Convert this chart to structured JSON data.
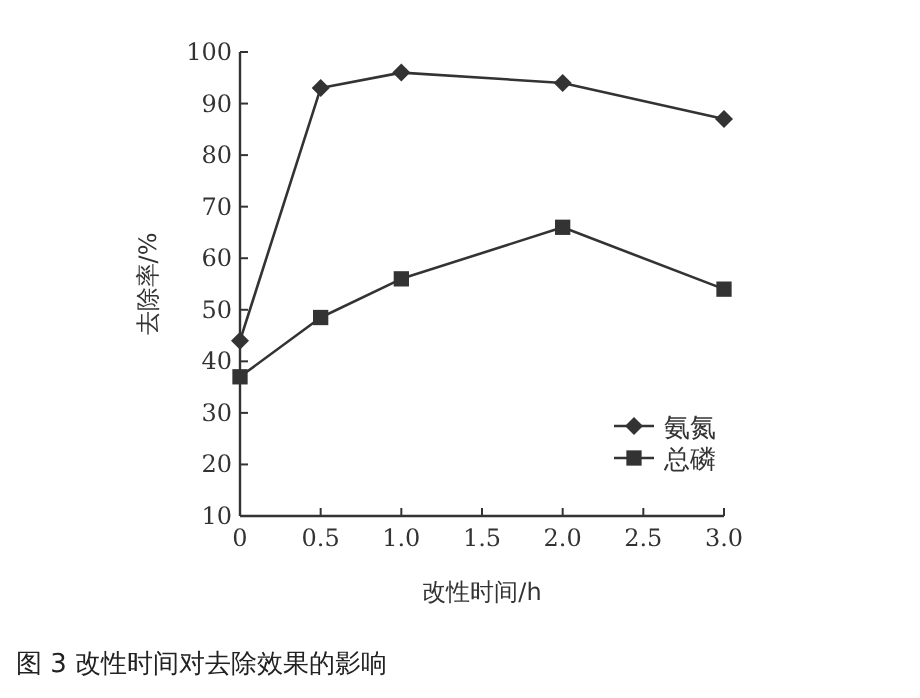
{
  "chart_data": {
    "type": "line",
    "xlabel": "改性时间/h",
    "ylabel": "去除率/%",
    "annotations": [
      "图 3 改性时间对去除效果的影响"
    ],
    "x": [
      0,
      0.5,
      1,
      2,
      3
    ],
    "series": [
      {
        "name": "氨氮",
        "color": "#333333",
        "marker": "diamond",
        "values": [
          44,
          93,
          96,
          94,
          87
        ]
      },
      {
        "name": "总磷",
        "color": "#333333",
        "marker": "square",
        "values": [
          37,
          48.5,
          56,
          66,
          54
        ]
      }
    ],
    "xlim": [
      0,
      3
    ],
    "xticks": [
      0,
      0.5,
      {
        "value": 1,
        "label": "1.0"
      },
      1.5,
      {
        "value": 2,
        "label": "2.0"
      },
      2.5,
      {
        "value": 3,
        "label": "3.0"
      }
    ],
    "ylim": [
      10,
      100
    ],
    "yticks": [
      10,
      20,
      30,
      40,
      50,
      60,
      70,
      80,
      90,
      100
    ],
    "grid": false,
    "legend": "bottom right"
  }
}
